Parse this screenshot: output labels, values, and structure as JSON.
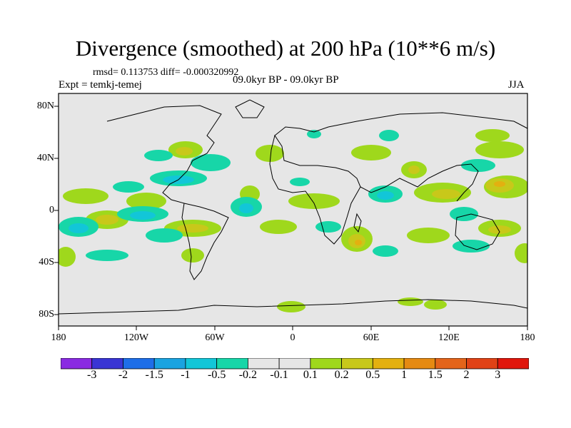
{
  "title": "Divergence (smoothed) at 200 hPa (10**6 m/s)",
  "stats_text": "rmsd= 0.113753  diff= -0.000320992",
  "experiment": "Expt = temkj-temej",
  "period": "09.0kyr BP - 09.0kyr BP",
  "season": "JJA",
  "lat_labels": [
    "80N",
    "40N",
    "0",
    "40S",
    "80S"
  ],
  "lon_labels": [
    "180",
    "120W",
    "60W",
    "0",
    "60E",
    "120E",
    "180"
  ],
  "colorbar": {
    "labels": [
      "-3",
      "-2",
      "-1.5",
      "-1",
      "-0.5",
      "-0.2",
      "-0.1",
      "0.1",
      "0.2",
      "0.5",
      "1",
      "1.5",
      "2",
      "3"
    ],
    "colors": [
      "#8a2be2",
      "#3a35d4",
      "#1e6ee8",
      "#1aa3e0",
      "#12c6d8",
      "#17d6a8",
      "#e6e6e6",
      "#9fd81c",
      "#c8c81a",
      "#e3b010",
      "#e58a12",
      "#e3641a",
      "#e04216",
      "#e0160c"
    ]
  },
  "map_colors": {
    "neutral": "#e6e6e6",
    "neg_weak": "#17d6a8",
    "neg_mid": "#12c6d8",
    "pos_weak": "#9fd81c",
    "pos_mid": "#c8c81a",
    "pos_strong": "#e3b010"
  }
}
